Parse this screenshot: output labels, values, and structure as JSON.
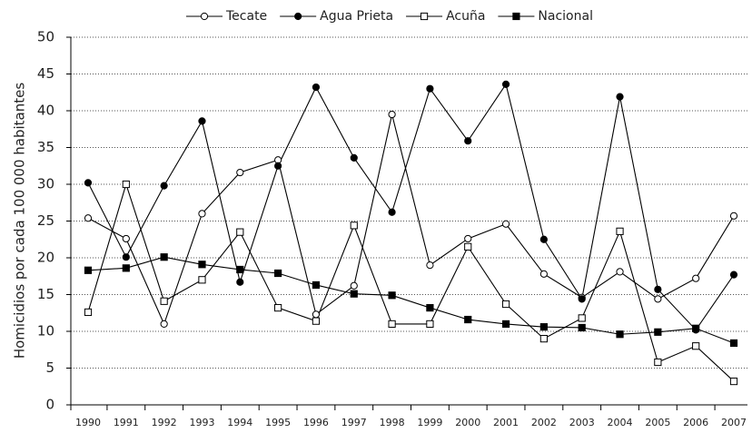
{
  "chart_data": {
    "type": "line",
    "ylabel": "Homicidios por cada 100 000 habitantes",
    "categories": [
      "1990",
      "1991",
      "1992",
      "1993",
      "1994",
      "1995",
      "1996",
      "1997",
      "1998",
      "1999",
      "2000",
      "2001",
      "2002",
      "2003",
      "2004",
      "2005",
      "2006",
      "2007"
    ],
    "series": [
      {
        "name": "Tecate",
        "color": "#000000",
        "marker": "circle",
        "filled": false,
        "values": [
          25.4,
          22.6,
          11,
          26,
          31.6,
          33.3,
          12.3,
          16.2,
          39.5,
          19,
          22.6,
          24.6,
          17.8,
          14.6,
          18.1,
          14.4,
          17.2,
          25.7
        ]
      },
      {
        "name": "Agua Prieta",
        "color": "#000000",
        "marker": "circle",
        "filled": true,
        "values": [
          30.2,
          20.1,
          29.8,
          38.6,
          16.7,
          32.5,
          43.2,
          33.6,
          26.2,
          43,
          35.9,
          43.6,
          22.5,
          14.4,
          41.9,
          15.7,
          10.2,
          17.7
        ]
      },
      {
        "name": "Acuña",
        "color": "#000000",
        "marker": "square",
        "filled": false,
        "values": [
          12.6,
          30,
          14.1,
          17,
          23.5,
          13.2,
          11.4,
          24.4,
          11,
          11,
          21.5,
          13.7,
          9,
          11.8,
          23.6,
          5.8,
          8,
          3.2
        ]
      },
      {
        "name": "Nacional",
        "color": "#000000",
        "marker": "square",
        "filled": true,
        "values": [
          18.3,
          18.6,
          20.1,
          19.1,
          18.4,
          17.9,
          16.3,
          15.1,
          14.9,
          13.2,
          11.6,
          11,
          10.6,
          10.5,
          9.6,
          9.9,
          10.4,
          8.4
        ]
      }
    ],
    "ylim": [
      0,
      50
    ],
    "yticks": [
      0,
      5,
      10,
      15,
      20,
      25,
      30,
      35,
      40,
      45,
      50
    ],
    "grid": true,
    "legend": "top"
  }
}
